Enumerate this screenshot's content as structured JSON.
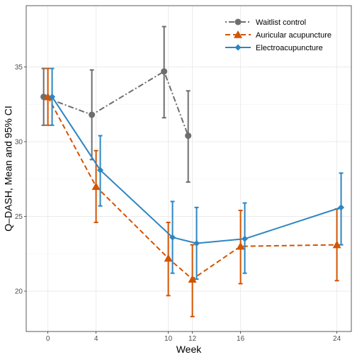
{
  "chart_data": {
    "type": "line",
    "xlabel": "Week",
    "ylabel": "Q–DASH, Mean and 95% CI",
    "x_ticks": [
      0,
      4,
      10,
      12,
      16,
      24
    ],
    "x_tick_labels": [
      "0",
      "4",
      "10",
      "12",
      "16",
      "24"
    ],
    "xlim": [
      -1.8,
      25.2
    ],
    "ylim": [
      17.3,
      39.1
    ],
    "y_ticks": [
      20,
      25,
      30,
      35
    ],
    "y_tick_labels": [
      "20",
      "25",
      "30",
      "35"
    ],
    "grid": true,
    "legend_position": "top-right",
    "series": [
      {
        "name": "Waitlist control",
        "color": "#6e6e6e",
        "line_style": "dotdash",
        "marker": "circle",
        "x_offset": -0.35,
        "points": [
          {
            "x": 0,
            "y": 33.0,
            "lo": 31.1,
            "hi": 34.9
          },
          {
            "x": 4,
            "y": 31.8,
            "lo": 28.8,
            "hi": 34.8
          },
          {
            "x": 10,
            "y": 34.7,
            "lo": 31.6,
            "hi": 37.7
          },
          {
            "x": 12,
            "y": 30.4,
            "lo": 27.3,
            "hi": 33.4
          }
        ]
      },
      {
        "name": "Auricular acupuncture",
        "color": "#d35400",
        "line_style": "dashed",
        "marker": "triangle",
        "x_offset": 0,
        "points": [
          {
            "x": 0,
            "y": 33.0,
            "lo": 31.1,
            "hi": 34.9
          },
          {
            "x": 4,
            "y": 27.0,
            "lo": 24.6,
            "hi": 29.4
          },
          {
            "x": 10,
            "y": 22.2,
            "lo": 19.7,
            "hi": 24.6
          },
          {
            "x": 12,
            "y": 20.8,
            "lo": 18.3,
            "hi": 23.1
          },
          {
            "x": 16,
            "y": 23.0,
            "lo": 20.5,
            "hi": 25.4
          },
          {
            "x": 24,
            "y": 23.1,
            "lo": 20.7,
            "hi": 25.5
          }
        ]
      },
      {
        "name": "Electroacupuncture",
        "color": "#2e86c1",
        "line_style": "solid",
        "marker": "diamond",
        "x_offset": 0.35,
        "points": [
          {
            "x": 0,
            "y": 33.0,
            "lo": 31.1,
            "hi": 34.9
          },
          {
            "x": 4,
            "y": 28.1,
            "lo": 25.7,
            "hi": 30.4
          },
          {
            "x": 10,
            "y": 23.6,
            "lo": 21.2,
            "hi": 26.0
          },
          {
            "x": 12,
            "y": 23.2,
            "lo": 20.8,
            "hi": 25.6
          },
          {
            "x": 16,
            "y": 23.5,
            "lo": 21.2,
            "hi": 25.9
          },
          {
            "x": 24,
            "y": 25.6,
            "lo": 23.1,
            "hi": 27.9
          }
        ]
      }
    ]
  }
}
